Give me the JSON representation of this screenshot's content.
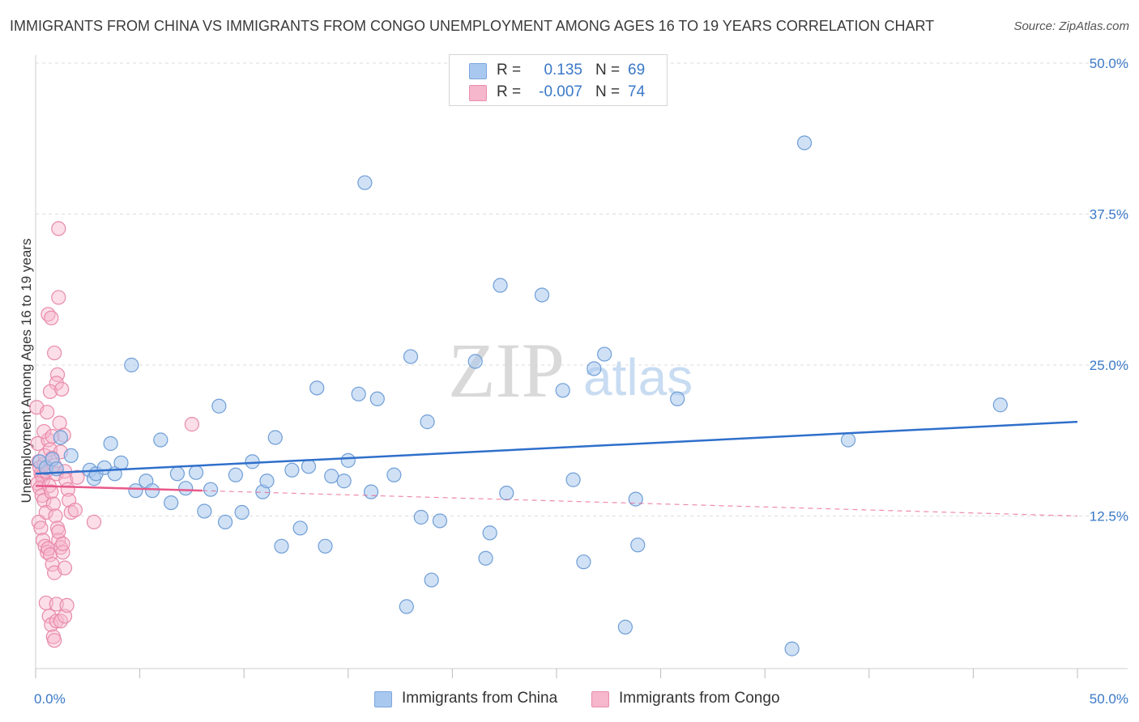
{
  "header": {
    "title": "IMMIGRANTS FROM CHINA VS IMMIGRANTS FROM CONGO UNEMPLOYMENT AMONG AGES 16 TO 19 YEARS CORRELATION CHART",
    "source": "Source: ZipAtlas.com"
  },
  "watermark": {
    "zip": "ZIP",
    "atlas": "atlas"
  },
  "legend": {
    "rows": [
      {
        "r_label": "R =",
        "r_value": "0.135",
        "n_label": "N =",
        "n_value": "69",
        "color": "#a9c8ef",
        "border": "#7aa6dc"
      },
      {
        "r_label": "R =",
        "r_value": "-0.007",
        "n_label": "N =",
        "n_value": "74",
        "color": "#f6b6cb",
        "border": "#e98eae"
      }
    ]
  },
  "bottom_legend": {
    "china": "Immigrants from China",
    "congo": "Immigrants from Congo"
  },
  "colors": {
    "china_fill": "#a9c8ef",
    "china_stroke": "#6f9ed6",
    "china_line": "#2f6fcb",
    "congo_fill": "#f6b6cb",
    "congo_stroke": "#e88aab",
    "congo_line": "#e8588a",
    "grid": "#dddddd",
    "axis_text": "#3a78c8"
  },
  "chart_data": {
    "type": "scatter",
    "title": "IMMIGRANTS FROM CHINA VS IMMIGRANTS FROM CONGO UNEMPLOYMENT AMONG AGES 16 TO 19 YEARS CORRELATION CHART",
    "xlabel": "",
    "ylabel": "Unemployment Among Ages 16 to 19 years",
    "xlim": [
      0,
      50
    ],
    "ylim": [
      0,
      50
    ],
    "x_tick_labels": [
      "0.0%",
      "50.0%"
    ],
    "y_ticks": [
      12.5,
      25.0,
      37.5,
      50.0
    ],
    "y_tick_labels": [
      "12.5%",
      "25.0%",
      "37.5%",
      "50.0%"
    ],
    "grid": true,
    "series": [
      {
        "name": "Immigrants from China",
        "r": 0.135,
        "n": 69,
        "trend": {
          "x": [
            0,
            50
          ],
          "y": [
            16.0,
            20.3
          ]
        },
        "points": [
          [
            0.2,
            17.0
          ],
          [
            0.5,
            16.5
          ],
          [
            0.8,
            17.2
          ],
          [
            1.0,
            16.4
          ],
          [
            1.2,
            19.0
          ],
          [
            1.7,
            17.5
          ],
          [
            2.6,
            16.3
          ],
          [
            2.8,
            15.6
          ],
          [
            2.9,
            16.0
          ],
          [
            3.3,
            16.5
          ],
          [
            3.6,
            18.5
          ],
          [
            3.8,
            16.0
          ],
          [
            4.1,
            16.9
          ],
          [
            4.6,
            25.0
          ],
          [
            4.8,
            14.6
          ],
          [
            5.3,
            15.4
          ],
          [
            5.6,
            14.6
          ],
          [
            6.0,
            18.8
          ],
          [
            6.5,
            13.6
          ],
          [
            6.8,
            16.0
          ],
          [
            7.2,
            14.8
          ],
          [
            7.7,
            16.1
          ],
          [
            8.1,
            12.9
          ],
          [
            8.4,
            14.7
          ],
          [
            8.8,
            21.6
          ],
          [
            9.1,
            12.0
          ],
          [
            9.6,
            15.9
          ],
          [
            9.9,
            12.8
          ],
          [
            10.4,
            17.0
          ],
          [
            10.9,
            14.5
          ],
          [
            11.1,
            15.4
          ],
          [
            11.5,
            19.0
          ],
          [
            11.8,
            10.0
          ],
          [
            12.3,
            16.3
          ],
          [
            12.7,
            11.5
          ],
          [
            13.1,
            16.6
          ],
          [
            13.5,
            23.1
          ],
          [
            13.9,
            10.0
          ],
          [
            14.2,
            15.8
          ],
          [
            14.8,
            15.4
          ],
          [
            15.0,
            17.1
          ],
          [
            15.5,
            22.6
          ],
          [
            15.8,
            40.1
          ],
          [
            16.1,
            14.5
          ],
          [
            16.4,
            22.2
          ],
          [
            17.2,
            15.9
          ],
          [
            17.8,
            5.0
          ],
          [
            18.0,
            25.7
          ],
          [
            18.5,
            12.4
          ],
          [
            18.8,
            20.3
          ],
          [
            19.0,
            7.2
          ],
          [
            19.4,
            12.1
          ],
          [
            21.1,
            25.3
          ],
          [
            21.6,
            9.0
          ],
          [
            21.8,
            11.1
          ],
          [
            22.3,
            31.6
          ],
          [
            22.6,
            14.4
          ],
          [
            24.3,
            30.8
          ],
          [
            25.3,
            22.9
          ],
          [
            25.8,
            15.5
          ],
          [
            26.3,
            8.7
          ],
          [
            26.8,
            24.7
          ],
          [
            27.3,
            25.9
          ],
          [
            28.3,
            3.3
          ],
          [
            28.8,
            13.9
          ],
          [
            28.9,
            10.1
          ],
          [
            30.8,
            22.2
          ],
          [
            36.3,
            1.5
          ],
          [
            36.9,
            43.4
          ],
          [
            39.0,
            18.8
          ],
          [
            46.3,
            21.7
          ]
        ]
      },
      {
        "name": "Immigrants from Congo",
        "r": -0.007,
        "n": 74,
        "trend": {
          "x": [
            0,
            50
          ],
          "y": [
            15.0,
            12.5
          ]
        },
        "trend_solid_until_x": 8.0,
        "points": [
          [
            0.05,
            21.5
          ],
          [
            0.1,
            18.5
          ],
          [
            0.15,
            17.0
          ],
          [
            0.2,
            16.5
          ],
          [
            0.25,
            16.0
          ],
          [
            0.3,
            15.8
          ],
          [
            0.35,
            15.5
          ],
          [
            0.4,
            16.8
          ],
          [
            0.45,
            17.5
          ],
          [
            0.5,
            16.2
          ],
          [
            0.1,
            15.2
          ],
          [
            0.2,
            14.8
          ],
          [
            0.3,
            14.2
          ],
          [
            0.4,
            13.8
          ],
          [
            0.5,
            12.8
          ],
          [
            0.15,
            12.0
          ],
          [
            0.25,
            11.5
          ],
          [
            0.35,
            10.5
          ],
          [
            0.45,
            10.0
          ],
          [
            0.55,
            9.5
          ],
          [
            0.6,
            18.8
          ],
          [
            0.7,
            18.0
          ],
          [
            0.8,
            17.3
          ],
          [
            0.9,
            16.7
          ],
          [
            1.0,
            16.0
          ],
          [
            0.65,
            15.0
          ],
          [
            0.75,
            14.5
          ],
          [
            0.85,
            13.5
          ],
          [
            0.95,
            12.5
          ],
          [
            1.05,
            11.5
          ],
          [
            0.6,
            9.8
          ],
          [
            0.7,
            9.3
          ],
          [
            0.8,
            8.5
          ],
          [
            0.9,
            7.8
          ],
          [
            0.5,
            5.3
          ],
          [
            0.65,
            4.2
          ],
          [
            0.75,
            3.5
          ],
          [
            0.85,
            2.5
          ],
          [
            0.9,
            2.2
          ],
          [
            1.0,
            5.2
          ],
          [
            1.1,
            10.5
          ],
          [
            1.2,
            9.9
          ],
          [
            1.3,
            9.5
          ],
          [
            1.4,
            8.2
          ],
          [
            1.0,
            3.8
          ],
          [
            1.2,
            3.8
          ],
          [
            1.4,
            4.2
          ],
          [
            1.5,
            5.1
          ],
          [
            1.1,
            11.2
          ],
          [
            1.3,
            10.2
          ],
          [
            0.6,
            29.2
          ],
          [
            0.75,
            28.9
          ],
          [
            0.9,
            26.0
          ],
          [
            1.05,
            24.2
          ],
          [
            1.0,
            23.5
          ],
          [
            0.7,
            22.8
          ],
          [
            1.25,
            23.0
          ],
          [
            0.55,
            21.1
          ],
          [
            1.15,
            20.2
          ],
          [
            1.35,
            19.2
          ],
          [
            1.1,
            36.3
          ],
          [
            1.1,
            30.6
          ],
          [
            0.4,
            19.5
          ],
          [
            0.8,
            19.1
          ],
          [
            1.2,
            17.8
          ],
          [
            1.4,
            16.2
          ],
          [
            1.45,
            15.5
          ],
          [
            1.55,
            14.7
          ],
          [
            1.6,
            13.8
          ],
          [
            1.7,
            12.8
          ],
          [
            7.5,
            20.1
          ],
          [
            2.8,
            12.0
          ],
          [
            1.9,
            13.0
          ],
          [
            2.0,
            15.7
          ]
        ]
      }
    ]
  }
}
